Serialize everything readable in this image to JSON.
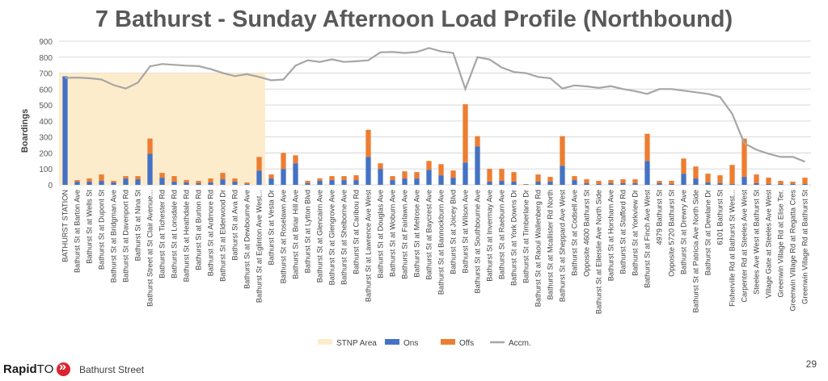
{
  "page": {
    "title": "7 Bathurst - Sunday Afternoon Load Profile (Northbound)",
    "brand_bold": "Rapid",
    "brand_rest": "TO",
    "route_name": "Bathurst Street",
    "page_number": "29"
  },
  "colors": {
    "stnp": "#fdeccb",
    "ons": "#4472c4",
    "offs": "#ed7d31",
    "accm": "#a6a6a6",
    "grid": "#d9d9d9",
    "brand_red": "#d9262e"
  },
  "chart_data": {
    "type": "bar",
    "ylabel": "Boardings",
    "ylim": [
      0,
      900
    ],
    "yticks": [
      0,
      100,
      200,
      300,
      400,
      500,
      600,
      700,
      800,
      900
    ],
    "grid": true,
    "legend_position": "bottom",
    "legend": [
      "STNP Area",
      "Ons",
      "Offs",
      "Accm."
    ],
    "stnp_area": {
      "from_index": 0,
      "to_index": 16,
      "value": 700
    },
    "categories": [
      "BATHURST STATION",
      "Bathurst St at Barton Ave",
      "Bathurst St at Wells St",
      "Bathurst St at Dupont St",
      "Bathurst St at Bridgman Ave",
      "Bathurst St at Davenport Rd",
      "Bathurst St at Nina St",
      "Bathurst Street at St Clair Avenue...",
      "Bathurst St at Tichester Rd",
      "Bathurst St at Lonsdale Rd",
      "Bathurst St at Heathdale Rd",
      "Bathurst St at Burton Rd",
      "Bathurst St at Ardmore Rd",
      "Bathurst St at Elderwood Dr",
      "Bathurst St at Ava Rd",
      "Bathurst St at Dewbourne Ave",
      "Bathurst St at Eglinton Ave West...",
      "Bathurst St at Vesta Dr",
      "Bathurst St at Roselawn Ave",
      "Bathurst St at Briar Hill Ave",
      "Bathurst St at Lytton Blvd",
      "Bathurst St at Glencairn Ave",
      "Bathurst St at Glengrove Ave",
      "Bathurst St at Shelborne Ave",
      "Bathurst St at Caribou Rd",
      "Bathurst St at Lawrence Ave West",
      "Bathurst St at Douglas Ave",
      "Bathurst St at Woburn Ave",
      "Bathurst St at Fairlawn Ave",
      "Bathurst St at Melrose Ave",
      "Bathurst St at Baycrest Ave",
      "Bathurst St at Bannockburn Ave",
      "Bathurst St at Joicey Blvd",
      "Bathurst St at Wilson Ave",
      "Bathurst St at Southbourne Ave",
      "Bathurst St at Invermay Ave",
      "Bathurst St at Raeburn Ave",
      "Bathurst St at York Downs Dr",
      "Bathurst St at Timberlane Dr",
      "Bathurst St at Raoul Wallenberg Rd",
      "Bathurst St at Mcallister Rd North",
      "Bathurst St at Sheppard Ave West",
      "Bathurst St at Codsell Ave",
      "Opposite 4600 Bathurst St",
      "Bathurst St at Ellerslie Ave North Side",
      "Bathurst St at Horsham Ave",
      "Bathurst St at Stafford Rd",
      "Bathurst St at Yorkview Dr",
      "Bathurst St at Finch Ave West",
      "4979 Bathurst St",
      "Opposite 5720 Bathurst St",
      "Bathurst St at Drewry Ave",
      "Bathurst St at Patricia Ave North Side",
      "Bathurst St at Dewlane Dr",
      "6101 Bathurst St",
      "Fisherville Rd at Bathurst St West...",
      "Carpenter Rd at Steeles Ave West",
      "Steeles Ave West at Bathurst St",
      "Village Gate at Steeles Ave West",
      "Greenwin Village Rd at Elise Ter.",
      "Greenwin Village Rd at Regatta Cres",
      "Greenwin Village Rd at Bathurst St"
    ],
    "series": [
      {
        "name": "Ons",
        "values": [
          680,
          20,
          20,
          25,
          15,
          40,
          35,
          195,
          45,
          20,
          15,
          10,
          15,
          35,
          20,
          5,
          90,
          40,
          100,
          135,
          10,
          25,
          30,
          30,
          30,
          175,
          100,
          30,
          40,
          40,
          95,
          60,
          45,
          140,
          240,
          20,
          25,
          20,
          2,
          20,
          20,
          120,
          30,
          10,
          5,
          10,
          10,
          10,
          150,
          10,
          5,
          70,
          40,
          15,
          10,
          5,
          50,
          10,
          5,
          5,
          5,
          5
        ]
      },
      {
        "name": "Offs",
        "values": [
          0,
          10,
          20,
          40,
          10,
          15,
          20,
          95,
          30,
          35,
          15,
          15,
          25,
          40,
          20,
          10,
          85,
          25,
          100,
          50,
          15,
          15,
          25,
          25,
          30,
          170,
          35,
          25,
          45,
          40,
          55,
          70,
          45,
          365,
          65,
          80,
          75,
          60,
          3,
          45,
          30,
          185,
          25,
          25,
          20,
          20,
          25,
          25,
          170,
          15,
          20,
          95,
          75,
          55,
          50,
          120,
          240,
          55,
          40,
          20,
          15,
          40
        ]
      },
      {
        "name": "Accm.",
        "values": [
          670,
          672,
          668,
          660,
          625,
          603,
          640,
          742,
          757,
          752,
          747,
          744,
          725,
          701,
          681,
          693,
          676,
          655,
          660,
          747,
          780,
          770,
          786,
          770,
          774,
          780,
          830,
          832,
          826,
          832,
          857,
          836,
          826,
          600,
          800,
          785,
          735,
          707,
          700,
          676,
          668,
          603,
          623,
          617,
          607,
          618,
          600,
          587,
          570,
          600,
          600,
          590,
          580,
          570,
          550,
          445,
          260,
          220,
          195,
          175,
          175,
          145
        ]
      }
    ]
  }
}
